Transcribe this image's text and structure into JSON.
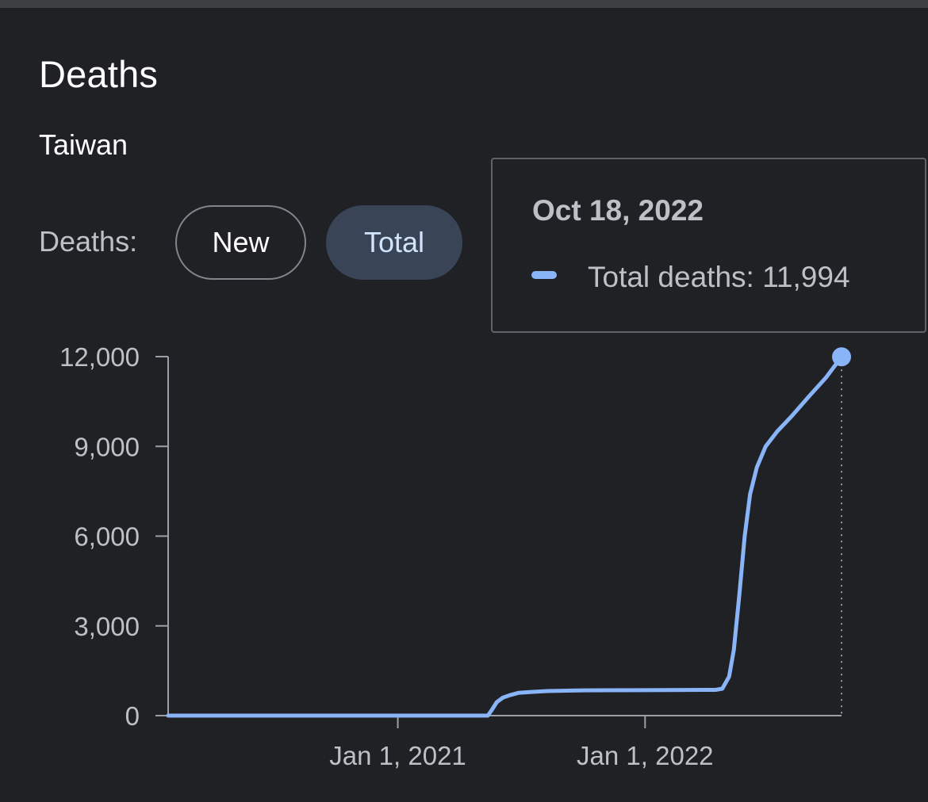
{
  "header": {
    "title": "Deaths",
    "location": "Taiwan"
  },
  "toggle": {
    "label": "Deaths:",
    "options": [
      "New",
      "Total"
    ],
    "selected": "Total"
  },
  "tooltip": {
    "date": "Oct 18, 2022",
    "series_label": "Total deaths",
    "value_text": "11,994"
  },
  "colors": {
    "background": "#202124",
    "line": "#8ab4f8",
    "axis": "#9aa0a6",
    "text": "#bdc1c6"
  },
  "chart_data": {
    "type": "line",
    "ylim": [
      0,
      12000
    ],
    "yticks": [
      "0",
      "3,000",
      "6,000",
      "9,000",
      "12,000"
    ],
    "xticks": [
      "Jan 1, 2021",
      "Jan 1, 2022"
    ],
    "grid": false,
    "series": [
      {
        "name": "Total deaths",
        "points": [
          [
            "2020-01-28",
            0
          ],
          [
            "2021-05-14",
            0
          ],
          [
            "2021-05-20",
            200
          ],
          [
            "2021-05-27",
            450
          ],
          [
            "2021-06-05",
            600
          ],
          [
            "2021-06-15",
            680
          ],
          [
            "2021-06-28",
            760
          ],
          [
            "2021-07-15",
            790
          ],
          [
            "2021-08-10",
            820
          ],
          [
            "2021-10-01",
            845
          ],
          [
            "2022-01-01",
            850
          ],
          [
            "2022-04-15",
            860
          ],
          [
            "2022-04-25",
            900
          ],
          [
            "2022-05-05",
            1300
          ],
          [
            "2022-05-12",
            2200
          ],
          [
            "2022-05-20",
            4000
          ],
          [
            "2022-05-28",
            6000
          ],
          [
            "2022-06-05",
            7400
          ],
          [
            "2022-06-15",
            8300
          ],
          [
            "2022-06-28",
            9000
          ],
          [
            "2022-07-15",
            9500
          ],
          [
            "2022-08-05",
            10000
          ],
          [
            "2022-09-01",
            10700
          ],
          [
            "2022-09-25",
            11300
          ],
          [
            "2022-10-18",
            11994
          ]
        ]
      }
    ]
  }
}
